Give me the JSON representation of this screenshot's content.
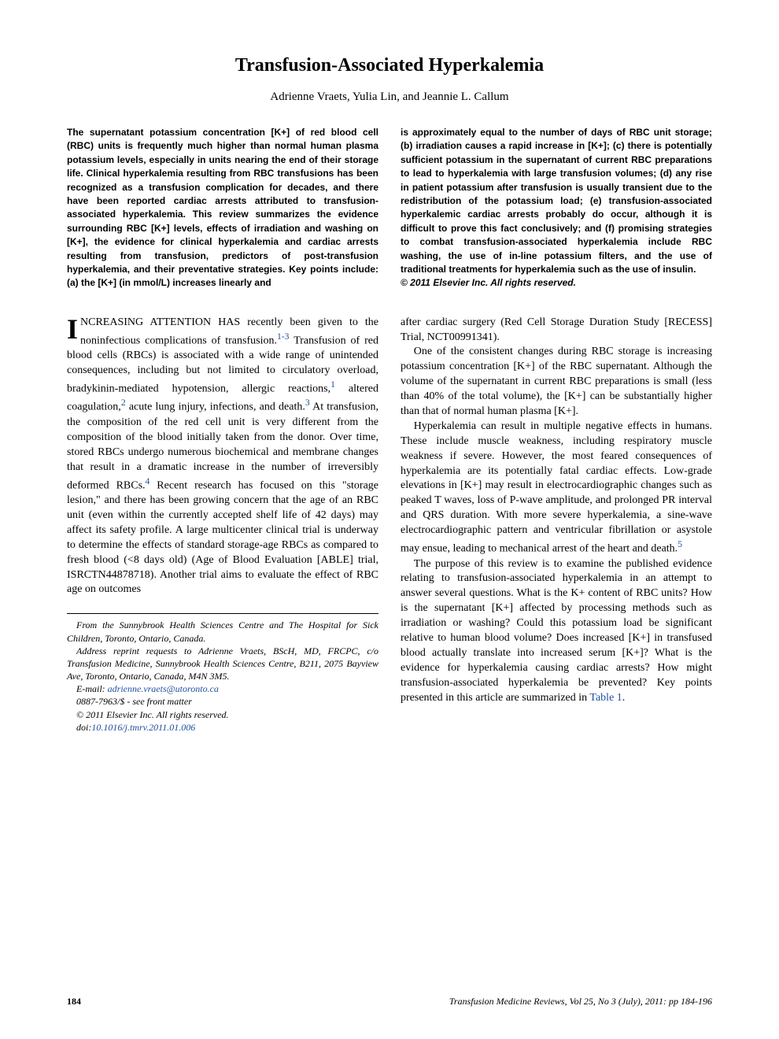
{
  "title": "Transfusion-Associated Hyperkalemia",
  "authors": "Adrienne Vraets, Yulia Lin, and Jeannie L. Callum",
  "abstract": {
    "left": "The supernatant potassium concentration [K+] of red blood cell (RBC) units is frequently much higher than normal human plasma potassium levels, especially in units nearing the end of their storage life. Clinical hyperkalemia resulting from RBC transfusions has been recognized as a transfusion complication for decades, and there have been reported cardiac arrests attributed to transfusion-associated hyperkalemia. This review summarizes the evidence surrounding RBC [K+] levels, effects of irradiation and washing on [K+], the evidence for clinical hyperkalemia and cardiac arrests resulting from transfusion, predictors of post-transfusion hyperkalemia, and their preventative strategies. Key points include: (a) the [K+] (in mmol/L) increases linearly and",
    "right_main": "is approximately equal to the number of days of RBC unit storage; (b) irradiation causes a rapid increase in [K+]; (c) there is potentially sufficient potassium in the supernatant of current RBC preparations to lead to hyperkalemia with large transfusion volumes; (d) any rise in patient potassium after transfusion is usually transient due to the redistribution of the potassium load; (e) transfusion-associated hyperkalemic cardiac arrests probably do occur, although it is difficult to prove this fact conclusively; and (f) promising strategies to combat transfusion-associated hyperkalemia include RBC washing, the use of in-line potassium filters, and the use of traditional treatments for hyperkalemia such as the use of insulin.",
    "copyright": "© 2011 Elsevier Inc. All rights reserved."
  },
  "body": {
    "col1": {
      "p1_lead": "I",
      "p1_rest": "NCREASING ATTENTION HAS recently been given to the noninfectious complications of transfusion.",
      "p1_ref1": "1-3",
      "p1_cont": " Transfusion of red blood cells (RBCs) is associated with a wide range of unintended consequences, including but not limited to circulatory overload, bradykinin-mediated hypotension, allergic reactions,",
      "p1_ref2": "1",
      "p1_cont2": " altered coagulation,",
      "p1_ref3": "2",
      "p1_cont3": " acute lung injury, infections, and death.",
      "p1_ref4": "3",
      "p1_cont4": " At transfusion, the composition of the red cell unit is very different from the composition of the blood initially taken from the donor. Over time, stored RBCs undergo numerous biochemical and membrane changes that result in a dramatic increase in the number of irreversibly deformed RBCs.",
      "p1_ref5": "4",
      "p1_cont5": " Recent research has focused on this \"storage lesion,\" and there has been growing concern that the age of an RBC unit (even within the currently accepted shelf life of 42 days) may affect its safety profile. A large multicenter clinical trial is underway to determine the effects of standard storage-age RBCs as compared to fresh blood (<8 days old) (Age of Blood Evaluation [ABLE] trial, ISRCTN44878718). Another trial aims to evaluate the effect of RBC age on outcomes"
    },
    "affiliation": {
      "from": "From the Sunnybrook Health Sciences Centre and The Hospital for Sick Children, Toronto, Ontario, Canada.",
      "address": "Address reprint requests to Adrienne Vraets, BScH, MD, FRCPC, c/o Transfusion Medicine, Sunnybrook Health Sciences Centre, B211, 2075 Bayview Ave, Toronto, Ontario, Canada, M4N 3M5.",
      "email_label": "E-mail: ",
      "email": "adrienne.vraets@utoronto.ca",
      "issn": "0887-7963/$ - see front matter",
      "copyright": "© 2011 Elsevier Inc. All rights reserved.",
      "doi_label": "doi:",
      "doi": "10.1016/j.tmrv.2011.01.006"
    },
    "col2": {
      "p1": "after cardiac surgery (Red Cell Storage Duration Study [RECESS] Trial, NCT00991341).",
      "p2": "One of the consistent changes during RBC storage is increasing potassium concentration [K+] of the RBC supernatant. Although the volume of the supernatant in current RBC preparations is small (less than 40% of the total volume), the [K+] can be substantially higher than that of normal human plasma [K+].",
      "p3_a": "Hyperkalemia can result in multiple negative effects in humans. These include muscle weakness, including respiratory muscle weakness if severe. However, the most feared consequences of hyperkalemia are its potentially fatal cardiac effects. Low-grade elevations in [K+] may result in electrocardiographic changes such as peaked T waves, loss of P-wave amplitude, and prolonged PR interval and QRS duration. With more severe hyperkalemia, a sine-wave electrocardiographic pattern and ventricular fibrillation or asystole may ensue, leading to mechanical arrest of the heart and death.",
      "p3_ref": "5",
      "p4_a": "The purpose of this review is to examine the published evidence relating to transfusion-associated hyperkalemia in an attempt to answer several questions. What is the K+ content of RBC units? How is the supernatant [K+] affected by processing methods such as irradiation or washing? Could this potassium load be significant relative to human blood volume? Does increased [K+] in transfused blood actually translate into increased serum [K+]? What is the evidence for hyperkalemia causing cardiac arrests? How might transfusion-associated hyperkalemia be prevented? Key points presented in this article are summarized in ",
      "p4_link": "Table 1",
      "p4_b": "."
    }
  },
  "footer": {
    "page": "184",
    "citation": "Transfusion Medicine Reviews, Vol 25, No 3 (July), 2011: pp 184-196"
  },
  "colors": {
    "link": "#2050a0",
    "text": "#000000",
    "background": "#ffffff"
  }
}
